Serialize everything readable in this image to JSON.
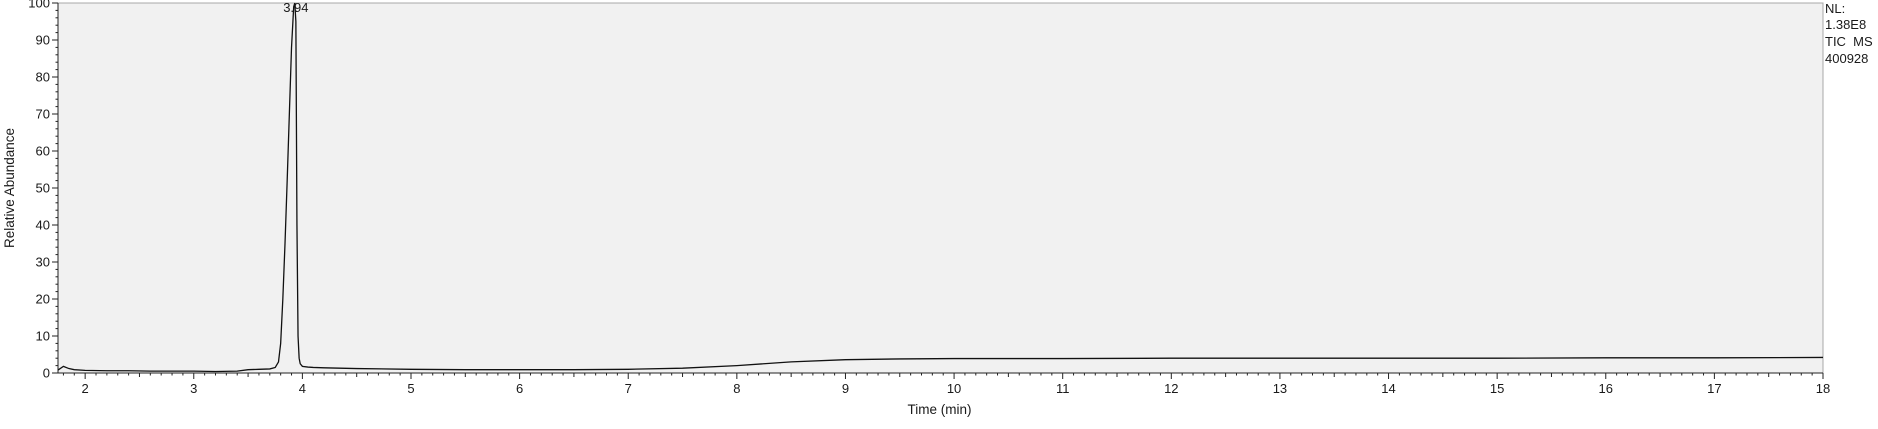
{
  "chart_data": {
    "type": "line",
    "title": "",
    "xlabel": "Time (min)",
    "ylabel": "Relative Abundance",
    "xlim": [
      1.75,
      18.0
    ],
    "ylim": [
      0,
      100
    ],
    "x_ticks": [
      "2",
      "3",
      "4",
      "5",
      "6",
      "7",
      "8",
      "9",
      "10",
      "11",
      "12",
      "13",
      "14",
      "15",
      "16",
      "17",
      "18"
    ],
    "y_ticks": [
      "0",
      "10",
      "20",
      "30",
      "40",
      "50",
      "60",
      "70",
      "80",
      "90",
      "100"
    ],
    "peak_label": "3.94",
    "peak_x": 3.94,
    "series": [
      {
        "x": [
          1.75,
          1.8,
          1.85,
          1.9,
          2.0,
          2.2,
          2.4,
          2.6,
          2.8,
          3.0,
          3.2,
          3.4,
          3.5,
          3.6,
          3.7,
          3.75,
          3.78,
          3.8,
          3.82,
          3.84,
          3.86,
          3.88,
          3.9,
          3.92,
          3.93,
          3.94,
          3.95,
          3.96,
          3.97,
          3.98,
          4.0,
          4.05,
          4.1,
          4.2,
          4.5,
          5.0,
          5.5,
          6.0,
          6.5,
          7.0,
          7.5,
          8.0,
          8.5,
          9.0,
          9.5,
          10.0,
          11.0,
          12.0,
          13.0,
          14.0,
          15.0,
          16.0,
          17.0,
          18.0
        ],
        "y": [
          0.8,
          1.8,
          1.2,
          0.9,
          0.7,
          0.6,
          0.6,
          0.5,
          0.5,
          0.5,
          0.4,
          0.5,
          0.9,
          1.0,
          1.1,
          1.5,
          3.0,
          8.0,
          20.0,
          35.0,
          52.0,
          70.0,
          88.0,
          99.0,
          100.0,
          95.0,
          40.0,
          10.0,
          4.0,
          2.5,
          1.8,
          1.6,
          1.5,
          1.4,
          1.2,
          1.0,
          0.9,
          0.9,
          0.9,
          1.0,
          1.3,
          2.0,
          3.0,
          3.6,
          3.8,
          3.9,
          3.9,
          4.0,
          4.0,
          4.0,
          4.0,
          4.1,
          4.1,
          4.2
        ]
      }
    ]
  },
  "nl_panel": {
    "line1": "NL:",
    "line2": "1.38E8",
    "line3": "TIC  MS",
    "line4": "400928"
  },
  "colors": {
    "plot_bg": "#f1f1f1",
    "trace": "#111111",
    "axis": "#222222"
  }
}
